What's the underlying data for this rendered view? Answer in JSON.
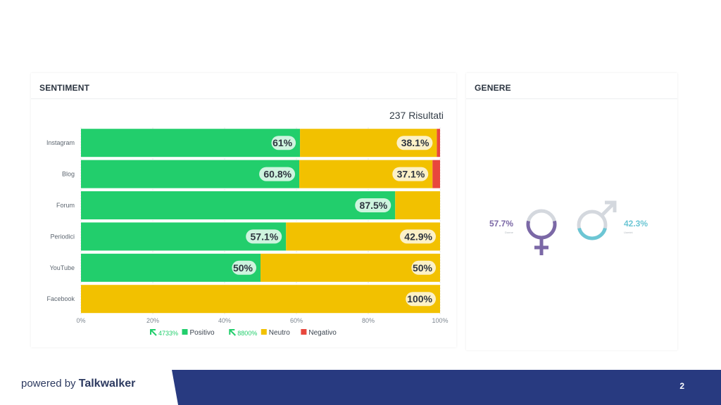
{
  "sentiment": {
    "title": "SENTIMENT",
    "results_label": "237 Risultati"
  },
  "genere": {
    "title": "GENERE",
    "female": {
      "pct_label": "57.7%",
      "sub_label": "Donne",
      "value": 57.7,
      "color": "#7b68a6",
      "icon": "female-symbol-icon"
    },
    "male": {
      "pct_label": "42.3%",
      "sub_label": "Uomini",
      "value": 42.3,
      "color": "#6cc6d4",
      "icon": "male-symbol-icon"
    },
    "track_color": "#d4d8de"
  },
  "chart_data": {
    "type": "bar",
    "orientation": "horizontal",
    "stacked": true,
    "categories": [
      "Instagram",
      "Blog",
      "Forum",
      "Periodici",
      "YouTube",
      "Facebook"
    ],
    "series": [
      {
        "name": "Positivo",
        "color": "#22ce6c",
        "values": [
          61,
          60.8,
          87.5,
          57.1,
          50,
          0
        ],
        "labels": [
          "61%",
          "60.8%",
          "87.5%",
          "57.1%",
          "50%",
          ""
        ]
      },
      {
        "name": "Neutro",
        "color": "#f2c100",
        "values": [
          38.1,
          37.1,
          12.5,
          42.9,
          50,
          100
        ],
        "labels": [
          "38.1%",
          "37.1%",
          "",
          "42.9%",
          "50%",
          "100%"
        ]
      },
      {
        "name": "Negativo",
        "color": "#e8473d",
        "values": [
          0.9,
          2.1,
          0,
          0,
          0,
          0
        ],
        "labels": [
          "",
          "",
          "",
          "",
          "",
          ""
        ]
      }
    ],
    "xlim": [
      0,
      100
    ],
    "x_ticks": [
      "0%",
      "20%",
      "40%",
      "60%",
      "80%",
      "100%"
    ],
    "grid": true,
    "legend": {
      "position": "bottom",
      "trends": [
        {
          "series": "Positivo",
          "label": "4733%"
        },
        {
          "series": "Neutro",
          "label": "8800%"
        }
      ]
    }
  },
  "footer": {
    "powered_by": "powered by",
    "brand": "Talkwalker",
    "page_number": "2"
  }
}
